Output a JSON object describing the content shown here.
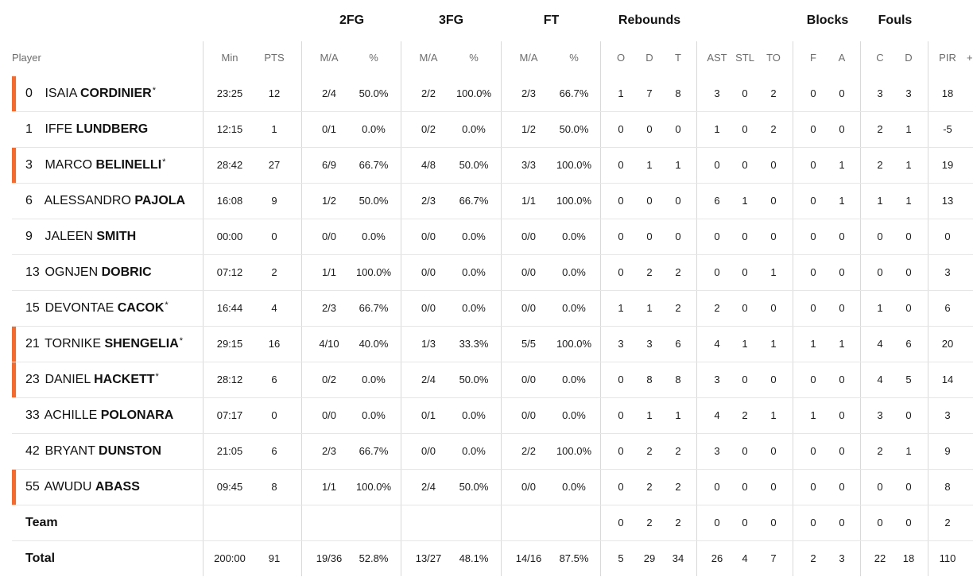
{
  "groups": [
    {
      "label": "2FG"
    },
    {
      "label": "3FG"
    },
    {
      "label": "FT"
    },
    {
      "label": "Rebounds"
    },
    {
      "label": "Blocks"
    },
    {
      "label": "Fouls"
    }
  ],
  "columns": {
    "player": "Player",
    "min": "Min",
    "pts": "PTS",
    "fg2_ma": "M/A",
    "fg2_pct": "%",
    "fg3_ma": "M/A",
    "fg3_pct": "%",
    "ft_ma": "M/A",
    "ft_pct": "%",
    "reb_o": "O",
    "reb_d": "D",
    "reb_t": "T",
    "ast": "AST",
    "stl": "STL",
    "to": "TO",
    "blk_f": "F",
    "blk_a": "A",
    "foul_c": "C",
    "foul_d": "D",
    "pir": "PIR",
    "extra": "+"
  },
  "players": [
    {
      "num": "0",
      "first": "ISAIA",
      "last": "CORDINIER",
      "star": "*",
      "starter": true,
      "min": "23:25",
      "pts": "12",
      "fg2": "2/4",
      "fg2p": "50.0%",
      "fg3": "2/2",
      "fg3p": "100.0%",
      "ft": "2/3",
      "ftp": "66.7%",
      "o": "1",
      "d": "7",
      "t": "8",
      "ast": "3",
      "stl": "0",
      "to": "2",
      "bf": "0",
      "ba": "0",
      "fc": "3",
      "fd": "3",
      "pir": "18"
    },
    {
      "num": "1",
      "first": "IFFE",
      "last": "LUNDBERG",
      "star": "",
      "starter": false,
      "min": "12:15",
      "pts": "1",
      "fg2": "0/1",
      "fg2p": "0.0%",
      "fg3": "0/2",
      "fg3p": "0.0%",
      "ft": "1/2",
      "ftp": "50.0%",
      "o": "0",
      "d": "0",
      "t": "0",
      "ast": "1",
      "stl": "0",
      "to": "2",
      "bf": "0",
      "ba": "0",
      "fc": "2",
      "fd": "1",
      "pir": "-5"
    },
    {
      "num": "3",
      "first": "MARCO",
      "last": "BELINELLI",
      "star": "*",
      "starter": true,
      "min": "28:42",
      "pts": "27",
      "fg2": "6/9",
      "fg2p": "66.7%",
      "fg3": "4/8",
      "fg3p": "50.0%",
      "ft": "3/3",
      "ftp": "100.0%",
      "o": "0",
      "d": "1",
      "t": "1",
      "ast": "0",
      "stl": "0",
      "to": "0",
      "bf": "0",
      "ba": "1",
      "fc": "2",
      "fd": "1",
      "pir": "19"
    },
    {
      "num": "6",
      "first": "ALESSANDRO",
      "last": "PAJOLA",
      "star": "",
      "starter": false,
      "min": "16:08",
      "pts": "9",
      "fg2": "1/2",
      "fg2p": "50.0%",
      "fg3": "2/3",
      "fg3p": "66.7%",
      "ft": "1/1",
      "ftp": "100.0%",
      "o": "0",
      "d": "0",
      "t": "0",
      "ast": "6",
      "stl": "1",
      "to": "0",
      "bf": "0",
      "ba": "1",
      "fc": "1",
      "fd": "1",
      "pir": "13"
    },
    {
      "num": "9",
      "first": "JALEEN",
      "last": "SMITH",
      "star": "",
      "starter": false,
      "min": "00:00",
      "pts": "0",
      "fg2": "0/0",
      "fg2p": "0.0%",
      "fg3": "0/0",
      "fg3p": "0.0%",
      "ft": "0/0",
      "ftp": "0.0%",
      "o": "0",
      "d": "0",
      "t": "0",
      "ast": "0",
      "stl": "0",
      "to": "0",
      "bf": "0",
      "ba": "0",
      "fc": "0",
      "fd": "0",
      "pir": "0"
    },
    {
      "num": "13",
      "first": "OGNJEN",
      "last": "DOBRIC",
      "star": "",
      "starter": false,
      "min": "07:12",
      "pts": "2",
      "fg2": "1/1",
      "fg2p": "100.0%",
      "fg3": "0/0",
      "fg3p": "0.0%",
      "ft": "0/0",
      "ftp": "0.0%",
      "o": "0",
      "d": "2",
      "t": "2",
      "ast": "0",
      "stl": "0",
      "to": "1",
      "bf": "0",
      "ba": "0",
      "fc": "0",
      "fd": "0",
      "pir": "3"
    },
    {
      "num": "15",
      "first": "DEVONTAE",
      "last": "CACOK",
      "star": "*",
      "starter": false,
      "min": "16:44",
      "pts": "4",
      "fg2": "2/3",
      "fg2p": "66.7%",
      "fg3": "0/0",
      "fg3p": "0.0%",
      "ft": "0/0",
      "ftp": "0.0%",
      "o": "1",
      "d": "1",
      "t": "2",
      "ast": "2",
      "stl": "0",
      "to": "0",
      "bf": "0",
      "ba": "0",
      "fc": "1",
      "fd": "0",
      "pir": "6"
    },
    {
      "num": "21",
      "first": "TORNIKE",
      "last": "SHENGELIA",
      "star": "*",
      "starter": true,
      "min": "29:15",
      "pts": "16",
      "fg2": "4/10",
      "fg2p": "40.0%",
      "fg3": "1/3",
      "fg3p": "33.3%",
      "ft": "5/5",
      "ftp": "100.0%",
      "o": "3",
      "d": "3",
      "t": "6",
      "ast": "4",
      "stl": "1",
      "to": "1",
      "bf": "1",
      "ba": "1",
      "fc": "4",
      "fd": "6",
      "pir": "20"
    },
    {
      "num": "23",
      "first": "DANIEL",
      "last": "HACKETT",
      "star": "*",
      "starter": true,
      "min": "28:12",
      "pts": "6",
      "fg2": "0/2",
      "fg2p": "0.0%",
      "fg3": "2/4",
      "fg3p": "50.0%",
      "ft": "0/0",
      "ftp": "0.0%",
      "o": "0",
      "d": "8",
      "t": "8",
      "ast": "3",
      "stl": "0",
      "to": "0",
      "bf": "0",
      "ba": "0",
      "fc": "4",
      "fd": "5",
      "pir": "14"
    },
    {
      "num": "33",
      "first": "ACHILLE",
      "last": "POLONARA",
      "star": "",
      "starter": false,
      "min": "07:17",
      "pts": "0",
      "fg2": "0/0",
      "fg2p": "0.0%",
      "fg3": "0/1",
      "fg3p": "0.0%",
      "ft": "0/0",
      "ftp": "0.0%",
      "o": "0",
      "d": "1",
      "t": "1",
      "ast": "4",
      "stl": "2",
      "to": "1",
      "bf": "1",
      "ba": "0",
      "fc": "3",
      "fd": "0",
      "pir": "3"
    },
    {
      "num": "42",
      "first": "BRYANT",
      "last": "DUNSTON",
      "star": "",
      "starter": false,
      "min": "21:05",
      "pts": "6",
      "fg2": "2/3",
      "fg2p": "66.7%",
      "fg3": "0/0",
      "fg3p": "0.0%",
      "ft": "2/2",
      "ftp": "100.0%",
      "o": "0",
      "d": "2",
      "t": "2",
      "ast": "3",
      "stl": "0",
      "to": "0",
      "bf": "0",
      "ba": "0",
      "fc": "2",
      "fd": "1",
      "pir": "9"
    },
    {
      "num": "55",
      "first": "AWUDU",
      "last": "ABASS",
      "star": "",
      "starter": true,
      "min": "09:45",
      "pts": "8",
      "fg2": "1/1",
      "fg2p": "100.0%",
      "fg3": "2/4",
      "fg3p": "50.0%",
      "ft": "0/0",
      "ftp": "0.0%",
      "o": "0",
      "d": "2",
      "t": "2",
      "ast": "0",
      "stl": "0",
      "to": "0",
      "bf": "0",
      "ba": "0",
      "fc": "0",
      "fd": "0",
      "pir": "8"
    }
  ],
  "team": {
    "label": "Team",
    "o": "0",
    "d": "2",
    "t": "2",
    "ast": "0",
    "stl": "0",
    "to": "0",
    "bf": "0",
    "ba": "0",
    "fc": "0",
    "fd": "0",
    "pir": "2"
  },
  "total": {
    "label": "Total",
    "min": "200:00",
    "pts": "91",
    "fg2": "19/36",
    "fg2p": "52.8%",
    "fg3": "13/27",
    "fg3p": "48.1%",
    "ft": "14/16",
    "ftp": "87.5%",
    "o": "5",
    "d": "29",
    "t": "34",
    "ast": "26",
    "stl": "4",
    "to": "7",
    "bf": "2",
    "ba": "3",
    "fc": "22",
    "fd": "18",
    "pir": "110"
  },
  "colors": {
    "starter_bar": "#f26b2f",
    "separator": "#d9d9d9",
    "header_text": "#6d6d6d"
  }
}
